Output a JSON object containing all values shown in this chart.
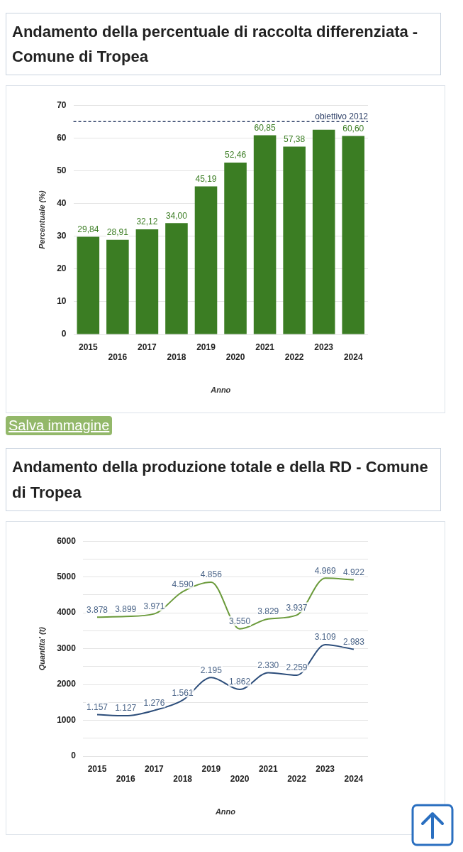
{
  "chart_data": [
    {
      "type": "bar",
      "title": "Andamento della percentuale di raccolta differenziata - Comune di Tropea",
      "xlabel": "Anno",
      "ylabel": "Percentuale (%)",
      "categories": [
        "2015",
        "2016",
        "2017",
        "2018",
        "2019",
        "2020",
        "2021",
        "2022",
        "2023",
        "2024"
      ],
      "values": [
        29.84,
        28.91,
        32.12,
        34.0,
        45.19,
        52.46,
        60.85,
        57.38,
        62.5,
        60.6
      ],
      "value_labels": [
        "29,84",
        "28,91",
        "32,12",
        "34,00",
        "45,19",
        "52,46",
        "60,85",
        "57,38",
        null,
        "60,60"
      ],
      "color": "#3b7d23",
      "ylim": [
        0,
        70
      ],
      "yticks": [
        0,
        10,
        20,
        30,
        40,
        50,
        60,
        70
      ],
      "grid": "y",
      "ref_lines": [
        {
          "axis": "y",
          "value": 65,
          "label": "obiettivo 2012",
          "color": "#2c3e66",
          "line_style": "dashed"
        }
      ],
      "annotations": [
        "Salva immagine"
      ]
    },
    {
      "type": "line",
      "title": "Andamento della produzione totale e della RD - Comune di Tropea",
      "xlabel": "Anno",
      "ylabel": "Quantita' (t)",
      "categories": [
        "2015",
        "2016",
        "2017",
        "2018",
        "2019",
        "2020",
        "2021",
        "2022",
        "2023",
        "2024"
      ],
      "series": [
        {
          "color": "#6a9a3a",
          "values": [
            3878,
            3899,
            3971,
            4590,
            4856,
            3550,
            3829,
            3937,
            4969,
            4922
          ],
          "value_labels": [
            "3.878",
            "3.899",
            "3.971",
            "4.590",
            "4.856",
            "3.550",
            "3.829",
            "3.937",
            "4.969",
            "4.922"
          ]
        },
        {
          "color": "#2c4d7a",
          "values": [
            1157,
            1127,
            1276,
            1561,
            2195,
            1862,
            2330,
            2259,
            3109,
            2983
          ],
          "value_labels": [
            "1.157",
            "1.127",
            "1.276",
            "1.561",
            "2.195",
            "1.862",
            "2.330",
            "2.259",
            "3.109",
            "2.983"
          ]
        }
      ],
      "ylim": [
        0,
        6000
      ],
      "yticks": [
        0,
        {
          "value": 500,
          "label": null
        },
        1000,
        {
          "value": 1500,
          "label": null
        },
        2000,
        {
          "value": 2500,
          "label": null
        },
        3000,
        {
          "value": 3500,
          "label": null
        },
        4000,
        {
          "value": 4500,
          "label": null
        },
        5000,
        {
          "value": 5500,
          "label": null
        },
        6000
      ],
      "grid": "y",
      "marker": "none",
      "line_style": "solid"
    }
  ]
}
